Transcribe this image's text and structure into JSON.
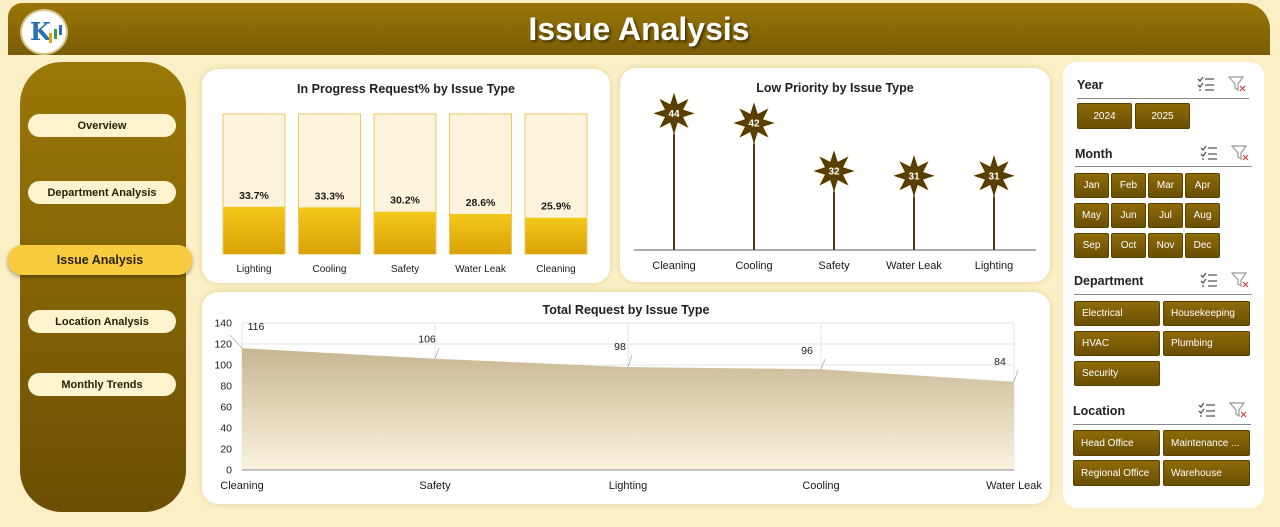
{
  "header": {
    "title": "Issue Analysis",
    "logo_icon": "kpi-logo-icon"
  },
  "nav": [
    {
      "label": "Overview",
      "active": false
    },
    {
      "label": "Department Analysis",
      "active": false
    },
    {
      "label": "Issue Analysis",
      "active": true
    },
    {
      "label": "Location Analysis",
      "active": false
    },
    {
      "label": "Monthly Trends",
      "active": false
    }
  ],
  "charts": {
    "in_progress": {
      "title": "In Progress Request% by Issue Type",
      "chart_data": {
        "type": "bar",
        "categories": [
          "Lighting",
          "Cooling",
          "Safety",
          "Water Leak",
          "Cleaning"
        ],
        "values": [
          33.7,
          33.3,
          30.2,
          28.6,
          25.9
        ],
        "labels": [
          "33.7%",
          "33.3%",
          "30.2%",
          "28.6%",
          "25.9%"
        ],
        "ylim": [
          0,
          100
        ]
      }
    },
    "low_priority": {
      "title": "Low Priority by Issue Type",
      "chart_data": {
        "type": "bar",
        "categories": [
          "Cleaning",
          "Cooling",
          "Safety",
          "Water Leak",
          "Lighting"
        ],
        "values": [
          44,
          42,
          32,
          31,
          31
        ]
      }
    },
    "total_request": {
      "title": "Total Request by Issue Type",
      "chart_data": {
        "type": "area",
        "categories": [
          "Cleaning",
          "Safety",
          "Lighting",
          "Cooling",
          "Water Leak"
        ],
        "values": [
          116,
          106,
          98,
          96,
          84
        ],
        "ylim": [
          0,
          140
        ],
        "yticks": [
          0,
          20,
          40,
          60,
          80,
          100,
          120,
          140
        ]
      }
    }
  },
  "slicers": {
    "year": {
      "title": "Year",
      "items": [
        "2024",
        "2025"
      ]
    },
    "month": {
      "title": "Month",
      "items": [
        "Jan",
        "Feb",
        "Mar",
        "Apr",
        "May",
        "Jun",
        "Jul",
        "Aug",
        "Sep",
        "Oct",
        "Nov",
        "Dec"
      ]
    },
    "department": {
      "title": "Department",
      "items": [
        "Electrical",
        "Housekeeping",
        "HVAC",
        "Plumbing",
        "Security"
      ]
    },
    "location": {
      "title": "Location",
      "items": [
        "Head Office",
        "Maintenance ...",
        "Regional Office",
        "Warehouse"
      ]
    }
  },
  "colors": {
    "gold_dark": "#7a5c05",
    "gold_bar": "#e9b50c",
    "area_fill": "#cdbd98",
    "star": "#5c3f02"
  }
}
